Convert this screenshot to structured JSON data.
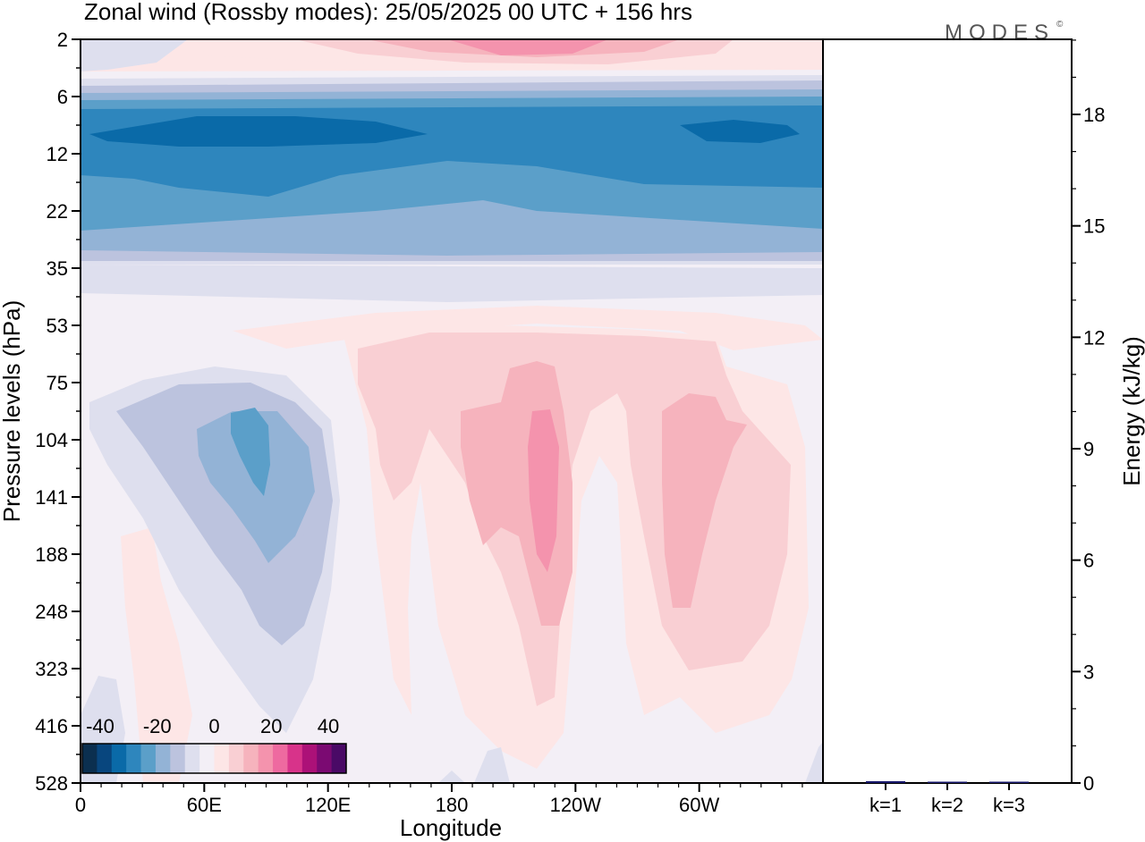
{
  "title": "Zonal wind (Rossby modes):  25/05/2025  00 UTC  + 156 hrs",
  "logo": "MODES",
  "logo_mark": "©",
  "chart_data": [
    {
      "type": "heatmap",
      "title": "Zonal wind (Rossby modes):  25/05/2025  00 UTC  + 156 hrs",
      "xlabel": "Longitude",
      "ylabel": "Pressure levels (hPa)",
      "x_ticks": [
        "0",
        "60E",
        "120E",
        "180",
        "120W",
        "60W"
      ],
      "y_ticks": [
        "2",
        "6",
        "12",
        "22",
        "35",
        "53",
        "75",
        "104",
        "141",
        "188",
        "248",
        "323",
        "416",
        "528"
      ],
      "colorbar": {
        "tick_labels": [
          "-40",
          "-20",
          "0",
          "20",
          "40"
        ],
        "colors": [
          "#0b2f4f",
          "#08467e",
          "#0a6aa8",
          "#2e86bd",
          "#5b9fc9",
          "#93b3d6",
          "#bcc3de",
          "#dedfee",
          "#f3eff6",
          "#fde6e6",
          "#f9cfd3",
          "#f6b3bd",
          "#f493ad",
          "#ee6aa0",
          "#d8338a",
          "#ac1178",
          "#7b0a72",
          "#4a0a66"
        ]
      },
      "features": [
        {
          "name": "upper easterly jet",
          "levels": "6-35 hPa",
          "value": -35
        },
        {
          "name": "upper westerly",
          "levels": "2 hPa",
          "lon": "120W",
          "value": 20
        },
        {
          "name": "tropospheric easterly",
          "lon": "80E",
          "levels": "104-188 hPa",
          "value": -20
        },
        {
          "name": "tropospheric westerly",
          "lon": "110W",
          "levels": "104-188 hPa",
          "value": 20
        },
        {
          "name": "tropospheric westerly",
          "lon": "60W",
          "levels": "104-248 hPa",
          "value": 12
        }
      ]
    },
    {
      "type": "bar",
      "ylabel": "Energy (kJ/kg)",
      "categories": [
        "k=1",
        "k=2",
        "k=3"
      ],
      "values": [
        0.05,
        0.03,
        0.02
      ],
      "ylim": [
        0,
        20
      ],
      "y_ticks": [
        "0",
        "3",
        "6",
        "9",
        "12",
        "15",
        "18"
      ],
      "bar_color": "#1a1a6e"
    }
  ]
}
